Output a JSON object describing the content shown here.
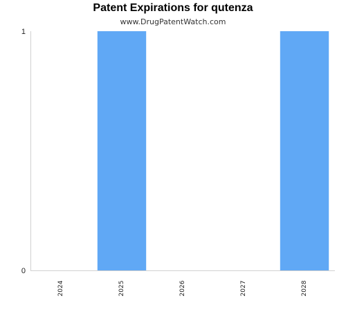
{
  "chart_data": {
    "type": "bar",
    "title": "Patent Expirations for qutenza",
    "subtitle": "www.DrugPatentWatch.com",
    "categories": [
      "2024",
      "2025",
      "2026",
      "2027",
      "2028"
    ],
    "values": [
      0,
      1,
      0,
      0,
      1
    ],
    "xlabel": "",
    "ylabel": "",
    "ylim": [
      0,
      1
    ],
    "yticks": [
      "0",
      "1"
    ],
    "grid": false,
    "legend": "none",
    "bar_color": "#60a8f5",
    "axis_color": "#d0d0d0"
  }
}
